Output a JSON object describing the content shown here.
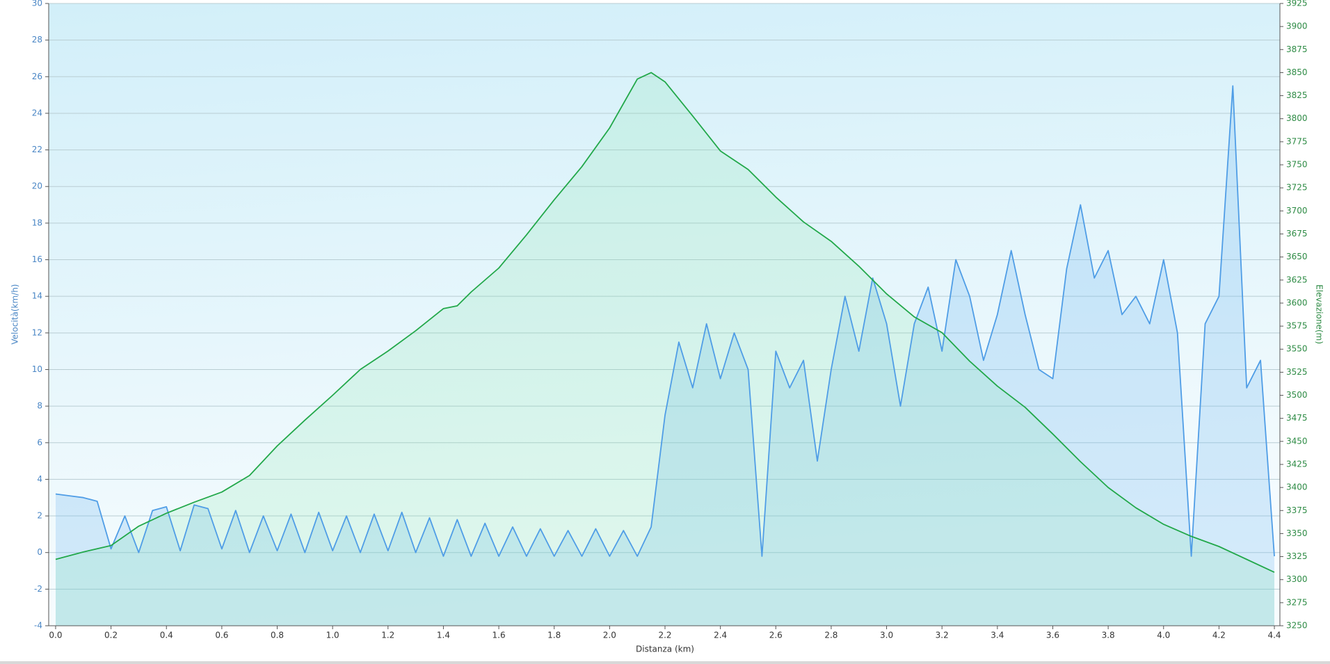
{
  "chart_data": {
    "type": "line",
    "xlabel": "Distanza  (km)",
    "ylabel": "Velocità(km/h)",
    "y2label": "Elevazione(m)",
    "grid": true,
    "xlim": [
      -0.025,
      4.42
    ],
    "xticks": [
      {
        "value": 0,
        "label": "0.0"
      },
      0.2,
      0.4,
      0.6,
      0.8,
      {
        "value": 1,
        "label": "1.0"
      },
      1.2,
      1.4,
      1.6,
      1.8,
      {
        "value": 2,
        "label": "2.0"
      },
      2.2,
      2.4,
      2.6,
      2.8,
      {
        "value": 3,
        "label": "3.0"
      },
      3.2,
      3.4,
      3.6,
      3.8,
      {
        "value": 4,
        "label": "4.0"
      },
      4.2,
      4.4
    ],
    "ylim": [
      -4,
      30
    ],
    "yticks": [
      -4,
      -2,
      0,
      2,
      4,
      6,
      8,
      10,
      12,
      14,
      16,
      18,
      20,
      22,
      24,
      26,
      28,
      30
    ],
    "y2lim": [
      3250,
      3925
    ],
    "y2ticks": [
      3250,
      3275,
      3300,
      3325,
      3350,
      3375,
      3400,
      3425,
      3450,
      3475,
      3500,
      3525,
      3550,
      3575,
      3600,
      3625,
      3650,
      3675,
      3700,
      3725,
      3750,
      3775,
      3800,
      3825,
      3850,
      3875,
      3900,
      3925
    ],
    "series": [
      {
        "name": "Velocità",
        "color": "#4f9de6",
        "axis": "y",
        "x": [
          0,
          0.05,
          0.1,
          0.15,
          0.2,
          0.25,
          0.3,
          0.35,
          0.4,
          0.45,
          0.5,
          0.55,
          0.6,
          0.65,
          0.7,
          0.75,
          0.8,
          0.85,
          0.9,
          0.95,
          1,
          1.05,
          1.1,
          1.15,
          1.2,
          1.25,
          1.3,
          1.35,
          1.4,
          1.45,
          1.5,
          1.55,
          1.6,
          1.65,
          1.7,
          1.75,
          1.8,
          1.85,
          1.9,
          1.95,
          2,
          2.05,
          2.1,
          2.15,
          2.2,
          2.25,
          2.3,
          2.35,
          2.4,
          2.45,
          2.5,
          2.55,
          2.6,
          2.65,
          2.7,
          2.75,
          2.8,
          2.85,
          2.9,
          2.95,
          3,
          3.05,
          3.1,
          3.15,
          3.2,
          3.25,
          3.3,
          3.35,
          3.4,
          3.45,
          3.5,
          3.55,
          3.6,
          3.65,
          3.7,
          3.75,
          3.8,
          3.85,
          3.9,
          3.95,
          4,
          4.05,
          4.1,
          4.15,
          4.2,
          4.25,
          4.3,
          4.35,
          4.4
        ],
        "values": [
          3.2,
          3.1,
          3.0,
          2.8,
          0.2,
          2.0,
          0.0,
          2.3,
          2.5,
          0.1,
          2.6,
          2.4,
          0.2,
          2.3,
          0.0,
          2.0,
          0.1,
          2.1,
          0.0,
          2.2,
          0.1,
          2.0,
          0.0,
          2.1,
          0.1,
          2.2,
          0.0,
          1.9,
          -0.2,
          1.8,
          -0.2,
          1.6,
          -0.2,
          1.4,
          -0.2,
          1.3,
          -0.2,
          1.2,
          -0.2,
          1.3,
          -0.2,
          1.2,
          -0.2,
          1.4,
          7.5,
          11.5,
          9.0,
          12.5,
          9.5,
          12.0,
          10.0,
          -0.2,
          11.0,
          9.0,
          10.5,
          5.0,
          10.0,
          14.0,
          11.0,
          15.0,
          12.5,
          8.0,
          12.5,
          14.5,
          11.0,
          16.0,
          14.0,
          10.5,
          13.0,
          16.5,
          13.0,
          10.0,
          9.5,
          15.5,
          19.0,
          15.0,
          16.5,
          13.0,
          14.0,
          12.5,
          16.0,
          12.0,
          -0.2,
          12.5,
          14.0,
          25.5,
          9.0,
          10.5,
          -0.2
        ]
      },
      {
        "name": "Elevazione",
        "color": "#22a84a",
        "axis": "y2",
        "x": [
          0,
          0.1,
          0.2,
          0.3,
          0.4,
          0.5,
          0.6,
          0.7,
          0.8,
          0.9,
          1,
          1.1,
          1.2,
          1.3,
          1.4,
          1.45,
          1.5,
          1.6,
          1.7,
          1.8,
          1.9,
          2,
          2.1,
          2.15,
          2.2,
          2.3,
          2.4,
          2.5,
          2.6,
          2.7,
          2.8,
          2.9,
          3,
          3.1,
          3.2,
          3.3,
          3.4,
          3.5,
          3.6,
          3.7,
          3.8,
          3.9,
          4,
          4.1,
          4.2,
          4.3,
          4.4
        ],
        "values": [
          3322,
          3330,
          3337,
          3358,
          3372,
          3384,
          3395,
          3413,
          3445,
          3473,
          3500,
          3528,
          3548,
          3570,
          3594,
          3597,
          3612,
          3638,
          3674,
          3712,
          3748,
          3790,
          3843,
          3850,
          3840,
          3803,
          3765,
          3745,
          3715,
          3688,
          3667,
          3640,
          3610,
          3585,
          3568,
          3537,
          3510,
          3487,
          3458,
          3428,
          3400,
          3378,
          3360,
          3347,
          3336,
          3322,
          3308
        ]
      }
    ]
  }
}
